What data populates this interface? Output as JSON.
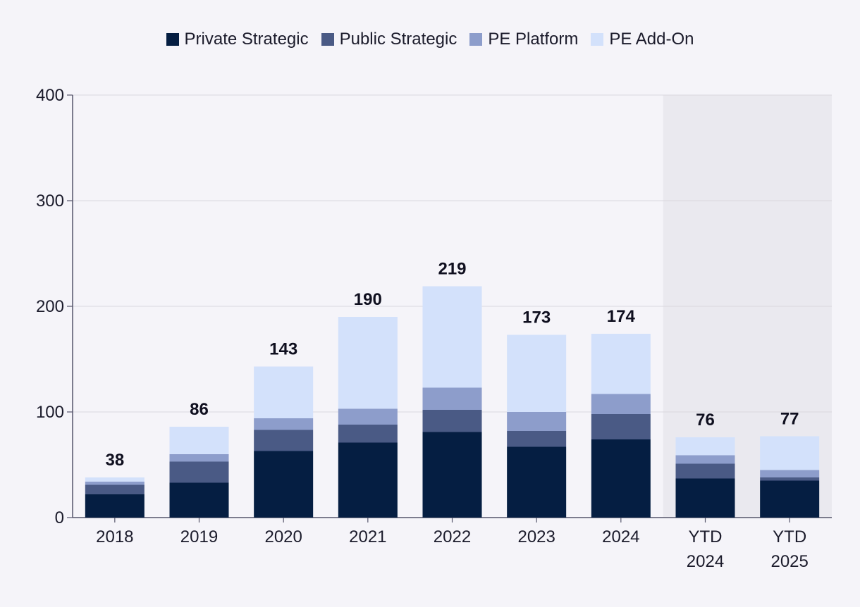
{
  "chart_data": {
    "type": "bar",
    "stacked": true,
    "categories": [
      [
        "2018"
      ],
      [
        "2019"
      ],
      [
        "2020"
      ],
      [
        "2021"
      ],
      [
        "2022"
      ],
      [
        "2023"
      ],
      [
        "2024"
      ],
      [
        "YTD",
        "2024"
      ],
      [
        "YTD",
        "2025"
      ]
    ],
    "series": [
      {
        "name": "Private Strategic",
        "color": "#051e42",
        "values": [
          22,
          33,
          63,
          71,
          81,
          67,
          74,
          37,
          35
        ]
      },
      {
        "name": "Public Strategic",
        "color": "#4a5a85",
        "values": [
          9,
          20,
          20,
          17,
          21,
          15,
          24,
          14,
          3
        ]
      },
      {
        "name": "PE Platform",
        "color": "#8d9dcb",
        "values": [
          3,
          7,
          11,
          15,
          21,
          18,
          19,
          8,
          7
        ]
      },
      {
        "name": "PE Add-On",
        "color": "#d3e1fb",
        "values": [
          4,
          26,
          49,
          87,
          96,
          73,
          57,
          17,
          32
        ]
      }
    ],
    "totals": [
      "38",
      "86",
      "143",
      "190",
      "219",
      "173",
      "174",
      "76",
      "77"
    ],
    "ylim": [
      0,
      400
    ],
    "yticks": [
      "0",
      "100",
      "200",
      "300",
      "400"
    ],
    "highlight_categories": [
      7,
      8
    ],
    "highlight_color": "#eae9ef",
    "grid": true,
    "legend_position": "top-center",
    "title": "",
    "xlabel": "",
    "ylabel": ""
  }
}
